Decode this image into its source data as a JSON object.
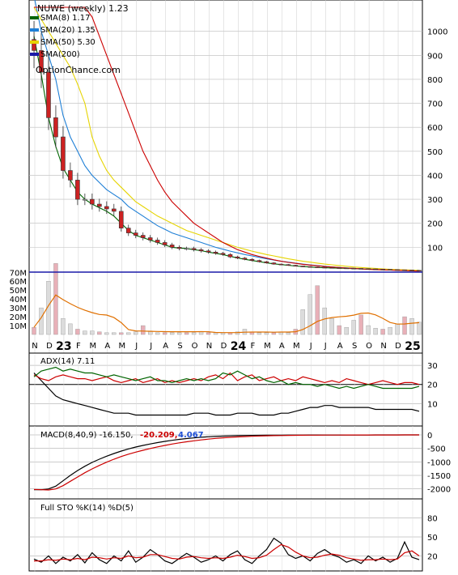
{
  "chart_data": [
    {
      "type": "candlestick",
      "title": "NUWE (weekly) 1.23",
      "watermark": "OptionChance.com",
      "legend": [
        {
          "label": "SMA(8) 1.17",
          "color": "#006400"
        },
        {
          "label": "SMA(20) 1.35",
          "color": "#1e7fd6"
        },
        {
          "label": "SMA(50) 5.30",
          "color": "#e6d400"
        },
        {
          "label": "SMA(200)",
          "color": "#1a1aa8"
        }
      ],
      "extra_series": [
        {
          "name": "SMA(longest)",
          "color": "#cc0000"
        }
      ],
      "yticks": [
        100,
        200,
        300,
        400,
        500,
        600,
        700,
        800,
        900,
        1000
      ],
      "ylim": [
        0,
        1090
      ],
      "xtick_labels": [
        "N",
        "D",
        "23",
        "F",
        "M",
        "A",
        "M",
        "J",
        "J",
        "A",
        "S",
        "O",
        "N",
        "D",
        "24",
        "F",
        "M",
        "A",
        "M",
        "J",
        "J",
        "A",
        "S",
        "O",
        "N",
        "D",
        "25"
      ],
      "price": {
        "weeks": [
          0,
          1,
          2,
          3,
          4,
          5,
          6,
          7,
          8,
          9,
          10,
          11,
          12,
          13,
          14,
          15,
          16,
          17,
          18,
          19,
          20,
          21,
          22,
          23,
          24,
          25,
          26,
          27,
          28,
          29,
          30,
          31,
          32,
          33,
          34,
          35,
          36,
          37,
          38,
          39,
          40,
          41,
          42,
          43,
          44,
          45,
          46,
          47,
          48,
          49,
          50,
          51,
          52,
          53
        ],
        "close": [
          920,
          830,
          640,
          560,
          420,
          380,
          300,
          300,
          280,
          270,
          260,
          250,
          180,
          160,
          150,
          140,
          130,
          120,
          110,
          100,
          95,
          95,
          90,
          85,
          80,
          75,
          70,
          60,
          55,
          50,
          45,
          40,
          35,
          30,
          28,
          25,
          22,
          20,
          18,
          17,
          16,
          15,
          14,
          13,
          12,
          11,
          10,
          9,
          8,
          7,
          6,
          5,
          4,
          3
        ]
      },
      "sma": {
        "SMA(8)": [
          980,
          820,
          640,
          520,
          430,
          380,
          330,
          300,
          280,
          265,
          250,
          230,
          200,
          170,
          150,
          140,
          130,
          120,
          110,
          100,
          97,
          95,
          90,
          86,
          80,
          75,
          70,
          62,
          56,
          50,
          45,
          40,
          35,
          31,
          28,
          25,
          22,
          20,
          18,
          16,
          15,
          14,
          13,
          12,
          11,
          10,
          9,
          8,
          7,
          6,
          5,
          4,
          3,
          2
        ],
        "SMA(20)": [
          1200,
          1000,
          900,
          800,
          650,
          560,
          500,
          440,
          400,
          370,
          340,
          320,
          300,
          270,
          250,
          230,
          210,
          190,
          175,
          160,
          150,
          140,
          130,
          120,
          110,
          100,
          92,
          84,
          77,
          70,
          64,
          58,
          52,
          47,
          42,
          38,
          34,
          30,
          27,
          24,
          21,
          18,
          16,
          14,
          12,
          10,
          9,
          8,
          7,
          6,
          5,
          4,
          3,
          2
        ],
        "SMA(50)": [
          1100,
          1050,
          1000,
          950,
          900,
          850,
          780,
          700,
          560,
          480,
          420,
          380,
          350,
          320,
          290,
          270,
          250,
          230,
          215,
          200,
          185,
          170,
          160,
          150,
          140,
          130,
          120,
          110,
          100,
          92,
          84,
          77,
          70,
          64,
          58,
          52,
          47,
          42,
          38,
          34,
          30,
          27,
          24,
          21,
          18,
          16,
          14,
          12,
          10,
          8,
          7,
          6,
          5,
          4
        ],
        "SMA(longest)": [
          1100,
          1100,
          1100,
          1100,
          1100,
          1100,
          1100,
          1100,
          1060,
          980,
          900,
          820,
          740,
          660,
          580,
          500,
          440,
          380,
          330,
          290,
          260,
          230,
          200,
          180,
          160,
          140,
          120,
          105,
          90,
          80,
          70,
          62,
          55,
          48,
          42,
          37,
          33,
          29,
          26,
          23,
          20,
          18,
          16,
          14,
          12,
          10,
          8,
          7,
          6,
          5,
          4,
          3,
          2,
          1
        ]
      },
      "volume": {
        "yticks_labels": [
          "10M",
          "20M",
          "30M",
          "40M",
          "50M",
          "60M",
          "70M"
        ],
        "yticks_values": [
          10,
          20,
          30,
          40,
          50,
          60,
          70
        ],
        "bars": [
          8,
          30,
          60,
          80,
          18,
          12,
          6,
          4,
          4,
          3,
          2,
          2,
          2,
          2,
          3,
          10,
          4,
          2,
          2,
          2,
          2,
          2,
          2,
          3,
          2,
          2,
          2,
          2,
          3,
          6,
          3,
          2,
          2,
          2,
          3,
          2,
          6,
          28,
          45,
          55,
          30,
          18,
          10,
          8,
          16,
          22,
          10,
          7,
          6,
          8,
          12,
          20,
          18,
          14
        ]
      }
    },
    {
      "type": "line",
      "title": "ADX(14) 7.11",
      "yticks": [
        10,
        20,
        30
      ],
      "ylim": [
        0,
        33
      ],
      "series": [
        {
          "name": "ADX",
          "color": "#000000",
          "values": [
            26,
            22,
            18,
            14,
            12,
            11,
            10,
            9,
            8,
            7,
            6,
            5,
            5,
            5,
            4,
            4,
            4,
            4,
            4,
            4,
            4,
            4,
            5,
            5,
            5,
            4,
            4,
            4,
            5,
            5,
            5,
            4,
            4,
            4,
            5,
            5,
            6,
            7,
            8,
            8,
            9,
            9,
            8,
            8,
            8,
            8,
            8,
            7,
            7,
            7,
            7,
            7,
            7,
            6
          ]
        },
        {
          "name": "+DI",
          "color": "#cc0000",
          "values": [
            25,
            23,
            22,
            24,
            25,
            24,
            23,
            23,
            22,
            23,
            24,
            22,
            21,
            22,
            23,
            21,
            22,
            23,
            21,
            22,
            21,
            22,
            23,
            22,
            24,
            25,
            23,
            26,
            22,
            24,
            25,
            22,
            23,
            24,
            22,
            23,
            22,
            24,
            23,
            22,
            21,
            22,
            21,
            23,
            22,
            21,
            20,
            21,
            22,
            21,
            20,
            21,
            21,
            20
          ]
        },
        {
          "name": "-DI",
          "color": "#006400",
          "values": [
            24,
            27,
            28,
            29,
            27,
            28,
            27,
            26,
            26,
            25,
            24,
            25,
            24,
            23,
            22,
            23,
            24,
            22,
            22,
            21,
            22,
            23,
            22,
            23,
            22,
            23,
            26,
            25,
            27,
            25,
            23,
            24,
            22,
            21,
            22,
            20,
            21,
            20,
            20,
            19,
            20,
            19,
            18,
            19,
            18,
            19,
            20,
            19,
            18,
            18,
            18,
            18,
            18,
            19
          ]
        }
      ]
    },
    {
      "type": "line",
      "title": "MACD(8,40,9) -16.150,",
      "title_values": [
        {
          "text": "-20.209,",
          "color": "#cc0000"
        },
        {
          "text": "4.067",
          "color": "#1e4fd6"
        }
      ],
      "yticks": [
        0,
        -500,
        -1000,
        -1500,
        -2000
      ],
      "yticks_labels": [
        "0",
        "-500",
        "-1000",
        "-1500",
        "-2000"
      ],
      "ylim": [
        -2250,
        150
      ],
      "series": [
        {
          "name": "MACD",
          "color": "#000000",
          "values": [
            -2030,
            -2030,
            -2000,
            -1900,
            -1700,
            -1500,
            -1320,
            -1160,
            -1020,
            -900,
            -790,
            -690,
            -600,
            -520,
            -450,
            -390,
            -335,
            -285,
            -240,
            -200,
            -165,
            -135,
            -110,
            -88,
            -70,
            -56,
            -44,
            -35,
            -28,
            -22,
            -18,
            -15,
            -12,
            -10,
            -8,
            -7,
            -6,
            -5,
            -4,
            -4,
            -3,
            -3,
            -2,
            -2,
            -2,
            -2,
            -2,
            -1,
            -1,
            -1,
            -1,
            -1,
            -1,
            -1
          ]
        },
        {
          "name": "Signal",
          "color": "#cc0000",
          "values": [
            -2020,
            -2030,
            -2040,
            -2000,
            -1880,
            -1720,
            -1560,
            -1400,
            -1260,
            -1130,
            -1010,
            -900,
            -800,
            -715,
            -640,
            -570,
            -505,
            -445,
            -390,
            -340,
            -295,
            -255,
            -218,
            -185,
            -155,
            -130,
            -108,
            -90,
            -75,
            -62,
            -51,
            -42,
            -34,
            -28,
            -23,
            -19,
            -15,
            -12,
            -10,
            -8,
            -7,
            -6,
            -5,
            -4,
            -4,
            -3,
            -3,
            -2,
            -2,
            -2,
            -2,
            -1,
            -1,
            -1
          ]
        }
      ]
    },
    {
      "type": "line",
      "title": "Full STO %K(14) %D(5)",
      "yticks": [
        20,
        50,
        80
      ],
      "ylim": [
        0,
        100
      ],
      "series": [
        {
          "name": "%K",
          "color": "#000000",
          "values": [
            15,
            10,
            20,
            8,
            18,
            12,
            22,
            9,
            25,
            14,
            8,
            20,
            12,
            28,
            10,
            18,
            30,
            22,
            12,
            8,
            16,
            24,
            18,
            10,
            14,
            20,
            12,
            22,
            28,
            14,
            8,
            20,
            30,
            48,
            40,
            22,
            16,
            20,
            12,
            24,
            30,
            22,
            18,
            10,
            14,
            8,
            20,
            12,
            18,
            10,
            16,
            42,
            18,
            14
          ]
        },
        {
          "name": "%D",
          "color": "#cc0000",
          "values": [
            12,
            12,
            14,
            13,
            15,
            14,
            16,
            14,
            18,
            17,
            15,
            17,
            16,
            20,
            17,
            18,
            22,
            22,
            19,
            16,
            15,
            18,
            19,
            17,
            16,
            17,
            16,
            18,
            21,
            19,
            16,
            17,
            21,
            30,
            38,
            34,
            26,
            20,
            17,
            18,
            21,
            23,
            21,
            17,
            15,
            13,
            14,
            14,
            15,
            14,
            15,
            25,
            28,
            20
          ]
        }
      ]
    }
  ]
}
